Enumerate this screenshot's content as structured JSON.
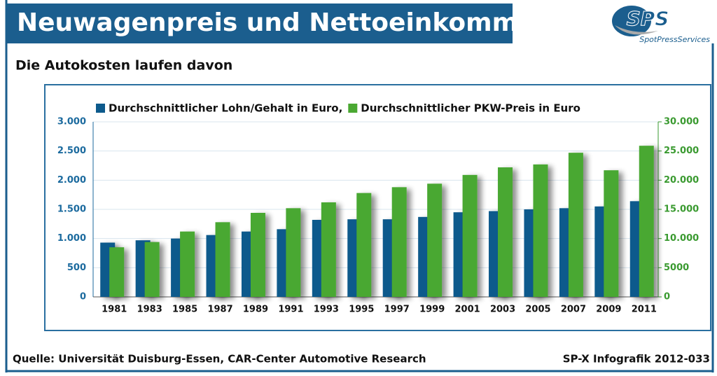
{
  "chart_data": {
    "type": "bar",
    "title": "Neuwagenpreis und Nettoeinkommen",
    "subtitle": "Die Autokosten laufen davon",
    "categories": [
      "1981",
      "1983",
      "1985",
      "1987",
      "1989",
      "1991",
      "1993",
      "1995",
      "1997",
      "1999",
      "2001",
      "2003",
      "2005",
      "2007",
      "2009",
      "2011"
    ],
    "series": [
      {
        "name": "Durchschnittlicher Lohn/Gehalt in Euro,",
        "color": "#0d5a8c",
        "axis": "y",
        "values": [
          930,
          970,
          1000,
          1060,
          1120,
          1160,
          1320,
          1330,
          1330,
          1370,
          1450,
          1470,
          1500,
          1520,
          1550,
          1640
        ]
      },
      {
        "name": "Durchschnittlicher PKW-Preis in Euro",
        "color": "#4aa832",
        "axis": "y2",
        "values": [
          8500,
          9400,
          11200,
          12800,
          14400,
          15200,
          16200,
          17800,
          18800,
          19400,
          20900,
          22200,
          22700,
          24700,
          21700,
          25900
        ]
      }
    ],
    "ylim": [
      0,
      3000
    ],
    "yticks": [
      0,
      500,
      {
        "value": 1000,
        "label": "1.000"
      },
      {
        "value": 1500,
        "label": "1.500"
      },
      {
        "value": 2000,
        "label": "2.000"
      },
      {
        "value": 2500,
        "label": "2.500"
      },
      {
        "value": 3000,
        "label": "3.000"
      }
    ],
    "y2lim": [
      0,
      30000
    ],
    "y2ticks": [
      0,
      5000,
      {
        "value": 10000,
        "label": "10.000"
      },
      {
        "value": 15000,
        "label": "15.000"
      },
      {
        "value": 20000,
        "label": "20.000"
      },
      {
        "value": 25000,
        "label": "25.000"
      },
      {
        "value": 30000,
        "label": "30.000"
      }
    ],
    "grid": true,
    "legend": "top-left"
  },
  "branding": {
    "logo": "SPS",
    "tagline": "SpotPressServices"
  },
  "footer": {
    "source": "Quelle: Universität Duisburg-Essen, CAR-Center Automotive Research",
    "credit": "SP-X Infografik 2012-033"
  }
}
